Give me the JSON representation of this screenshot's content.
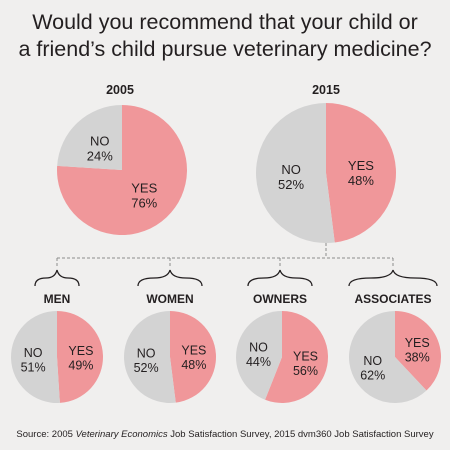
{
  "title_lines": [
    "Would you recommend that your child or",
    "a friend’s child pursue veterinary medicine?"
  ],
  "colors": {
    "yes": "#f0979a",
    "no": "#d3d3d3",
    "background": "#f0efee",
    "connector": "#8c8c8c"
  },
  "chart_data": [
    {
      "type": "pie",
      "title": "2005",
      "slices": [
        {
          "name": "YES",
          "value": 76,
          "label": "76%"
        },
        {
          "name": "NO",
          "value": 24,
          "label": "24%"
        }
      ]
    },
    {
      "type": "pie",
      "title": "2015",
      "slices": [
        {
          "name": "YES",
          "value": 48,
          "label": "48%"
        },
        {
          "name": "NO",
          "value": 52,
          "label": "52%"
        }
      ]
    },
    {
      "type": "pie",
      "title": "MEN",
      "slices": [
        {
          "name": "YES",
          "value": 49,
          "label": "49%"
        },
        {
          "name": "NO",
          "value": 51,
          "label": "51%"
        }
      ]
    },
    {
      "type": "pie",
      "title": "WOMEN",
      "slices": [
        {
          "name": "YES",
          "value": 48,
          "label": "48%"
        },
        {
          "name": "NO",
          "value": 52,
          "label": "52%"
        }
      ]
    },
    {
      "type": "pie",
      "title": "OWNERS",
      "slices": [
        {
          "name": "YES",
          "value": 56,
          "label": "56%"
        },
        {
          "name": "NO",
          "value": 44,
          "label": "44%"
        }
      ]
    },
    {
      "type": "pie",
      "title": "ASSOCIATES",
      "slices": [
        {
          "name": "YES",
          "value": 38,
          "label": "38%"
        },
        {
          "name": "NO",
          "value": 62,
          "label": "62%"
        }
      ]
    }
  ],
  "source": {
    "prefix": "Source: 2005 ",
    "italic": "Veterinary Economics",
    "suffix": " Job Satisfaction Survey, 2015 dvm360 Job Satisfaction Survey"
  }
}
